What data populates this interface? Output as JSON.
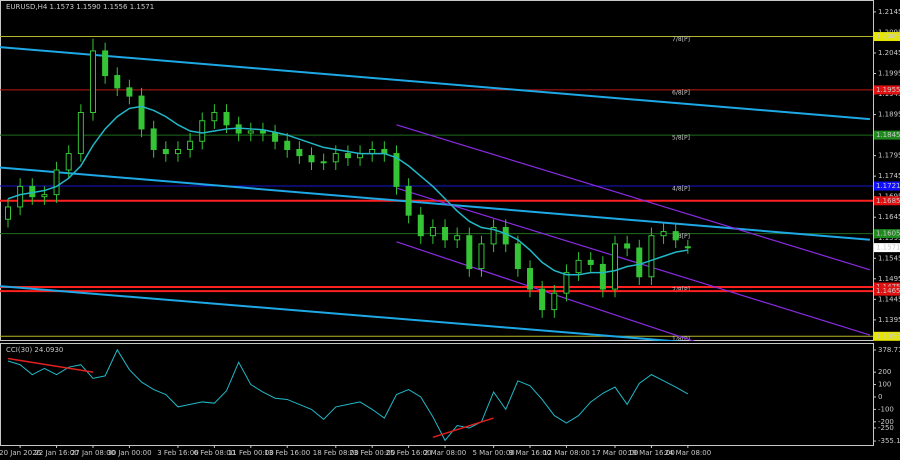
{
  "chart_data": {
    "type": "candlestick",
    "title": "EURUSD,H4  1.1573 1.1590 1.1556 1.1571",
    "color": "#35c435",
    "background": "#000000",
    "categories": [
      null,
      "20 Jan 2026",
      null,
      null,
      "22 Jan 16:00",
      null,
      null,
      "27 Jan 08:00",
      null,
      null,
      "30 Jan 00:00",
      null,
      null,
      null,
      "3 Feb 16:00",
      null,
      null,
      "6 Feb 08:00",
      null,
      null,
      "11 Feb 00:00",
      null,
      null,
      "13 Feb 16:00",
      null,
      null,
      null,
      "18 Feb 08:00",
      null,
      null,
      "23 Feb 00:00",
      null,
      null,
      "25 Feb 16:00",
      null,
      null,
      "2 Mar 08:00",
      null,
      null,
      null,
      "5 Mar 00:00",
      null,
      null,
      "9 Mar 16:00",
      null,
      null,
      "12 Mar 08:00",
      null,
      null,
      null,
      "17 Mar 00:00",
      null,
      null,
      "19 Mar 16:00",
      null,
      null,
      "24 Mar 08:00"
    ],
    "open": [
      1.164,
      1.167,
      1.172,
      1.1695,
      1.17,
      1.176,
      1.18,
      1.19,
      1.205,
      1.199,
      1.196,
      1.194,
      1.186,
      1.181,
      1.18,
      1.181,
      1.183,
      1.188,
      1.19,
      1.187,
      1.185,
      1.1855,
      1.185,
      1.183,
      1.181,
      1.1795,
      1.178,
      1.178,
      1.18,
      1.179,
      1.18,
      1.181,
      1.18,
      1.172,
      1.165,
      1.16,
      1.162,
      1.159,
      1.16,
      1.152,
      1.158,
      1.162,
      1.158,
      1.152,
      1.147,
      1.142,
      1.146,
      1.151,
      1.154,
      1.153,
      1.147,
      1.158,
      1.157,
      1.15,
      1.16,
      1.161,
      1.1573
    ],
    "high": [
      1.169,
      1.174,
      1.174,
      1.172,
      1.178,
      1.182,
      1.192,
      1.208,
      1.207,
      1.201,
      1.198,
      1.196,
      1.188,
      1.183,
      1.183,
      1.185,
      1.19,
      1.192,
      1.192,
      1.189,
      1.1875,
      1.1875,
      1.187,
      1.185,
      1.183,
      1.1815,
      1.18,
      1.182,
      1.182,
      1.182,
      1.183,
      1.183,
      1.182,
      1.174,
      1.167,
      1.164,
      1.164,
      1.162,
      1.162,
      1.16,
      1.164,
      1.164,
      1.16,
      1.154,
      1.149,
      1.148,
      1.153,
      1.156,
      1.156,
      1.155,
      1.16,
      1.16,
      1.159,
      1.162,
      1.163,
      1.163,
      1.159
    ],
    "low": [
      1.162,
      1.165,
      1.1675,
      1.1675,
      1.168,
      1.174,
      1.178,
      1.188,
      1.197,
      1.194,
      1.192,
      1.184,
      1.179,
      1.178,
      1.178,
      1.179,
      1.181,
      1.186,
      1.185,
      1.183,
      1.183,
      1.183,
      1.181,
      1.179,
      1.1775,
      1.176,
      1.176,
      1.176,
      1.177,
      1.177,
      1.178,
      1.178,
      1.17,
      1.163,
      1.158,
      1.158,
      1.157,
      1.157,
      1.15,
      1.15,
      1.156,
      1.156,
      1.15,
      1.145,
      1.14,
      1.14,
      1.144,
      1.149,
      1.151,
      1.145,
      1.145,
      1.155,
      1.148,
      1.148,
      1.158,
      1.157,
      1.1556
    ],
    "close": [
      1.167,
      1.172,
      1.1695,
      1.17,
      1.176,
      1.18,
      1.19,
      1.205,
      1.199,
      1.196,
      1.194,
      1.186,
      1.181,
      1.18,
      1.181,
      1.183,
      1.188,
      1.19,
      1.187,
      1.185,
      1.1855,
      1.185,
      1.183,
      1.181,
      1.1795,
      1.178,
      1.178,
      1.18,
      1.179,
      1.18,
      1.181,
      1.18,
      1.172,
      1.165,
      1.16,
      1.162,
      1.159,
      1.16,
      1.152,
      1.158,
      1.162,
      1.158,
      1.152,
      1.147,
      1.142,
      1.146,
      1.151,
      1.154,
      1.153,
      1.147,
      1.158,
      1.157,
      1.15,
      1.16,
      1.161,
      1.159,
      1.1571
    ],
    "ma": {
      "color": "#22b8c8",
      "values": [
        1.169,
        1.17,
        1.1705,
        1.171,
        1.172,
        1.174,
        1.177,
        1.182,
        1.186,
        1.189,
        1.191,
        1.1915,
        1.1905,
        1.189,
        1.187,
        1.1855,
        1.185,
        1.1855,
        1.186,
        1.1862,
        1.186,
        1.1858,
        1.1852,
        1.1845,
        1.1835,
        1.1825,
        1.1815,
        1.181,
        1.1805,
        1.18,
        1.18,
        1.18,
        1.179,
        1.177,
        1.1745,
        1.172,
        1.169,
        1.166,
        1.1635,
        1.162,
        1.1615,
        1.1605,
        1.159,
        1.1565,
        1.1535,
        1.1515,
        1.1505,
        1.1505,
        1.151,
        1.151,
        1.1515,
        1.1525,
        1.153,
        1.154,
        1.155,
        1.156,
        1.1565
      ]
    },
    "ylim": [
      1.1346,
      1.2174
    ],
    "yticks": [
      1.1395,
      1.1445,
      1.1495,
      1.1545,
      1.1595,
      1.1645,
      1.1695,
      1.1745,
      1.1795,
      1.1845,
      1.1895,
      1.1945,
      1.1995,
      1.2045,
      1.2095,
      1.2145
    ],
    "last_price": 1.1571,
    "levels": [
      {
        "value": 1.2085,
        "color": "#b5b52a",
        "box": "#e6e600",
        "name": "7/8[P]"
      },
      {
        "value": 1.1955,
        "color": "#c01818",
        "box": "#e01010",
        "name": "6/8[P]"
      },
      {
        "value": 1.1845,
        "color": "#1e6e1e",
        "box": "#1e8a1e",
        "name": "5/8[P]"
      },
      {
        "value": 1.1721,
        "color": "#1818d0",
        "box": "#1010ff",
        "name": "4/8[P]"
      },
      {
        "value": 1.1685,
        "color": "#ff2020",
        "box": "#e01010"
      },
      {
        "value": 1.1605,
        "color": "#1e6e1e",
        "box": "#1e8a1e",
        "name": "3/8[P]"
      },
      {
        "value": 1.1475,
        "color": "#ff2020",
        "box": "#e01010",
        "name": "2/8[P]"
      },
      {
        "value": 1.1465,
        "color": "#ff2020",
        "box": "#e01010"
      },
      {
        "value": 1.1355,
        "color": "#b5b52a",
        "box": "#e6e600",
        "name": "1/8[P]"
      }
    ],
    "trendlines": [
      {
        "color": "#1ea8e6",
        "x": [
          -1,
          71
        ],
        "values": [
          1.206,
          1.1884
        ]
      },
      {
        "color": "#1ea8e6",
        "x": [
          -1,
          71
        ],
        "values": [
          1.1767,
          1.159
        ]
      },
      {
        "color": "#1ea8e6",
        "x": [
          -1,
          71
        ],
        "values": [
          1.1478,
          1.1304
        ]
      },
      {
        "color": "#8a2be2",
        "x": [
          32,
          71
        ],
        "values": [
          1.187,
          1.1517
        ]
      },
      {
        "color": "#8a2be2",
        "x": [
          32,
          71
        ],
        "values": [
          1.1716,
          1.1358
        ]
      },
      {
        "color": "#8a2be2",
        "x": [
          32,
          71
        ],
        "values": [
          1.1585,
          1.12
        ]
      }
    ],
    "cci": {
      "title": "CCI(30) 24.0930",
      "color": "#22b8c8",
      "values": [
        290,
        260,
        180,
        230,
        180,
        240,
        260,
        150,
        170,
        380,
        220,
        120,
        60,
        20,
        -80,
        -60,
        -40,
        -50,
        50,
        280,
        100,
        40,
        -10,
        -20,
        -60,
        -100,
        -180,
        -80,
        -60,
        -40,
        -100,
        -170,
        20,
        60,
        0,
        -160,
        -350,
        -230,
        -250,
        -200,
        40,
        -100,
        130,
        90,
        -20,
        -150,
        -210,
        -150,
        -40,
        30,
        80,
        -60,
        110,
        180,
        130,
        80,
        24.093
      ],
      "ylim": [
        -387,
        435
      ],
      "yticks": [
        378.7116,
        200,
        100,
        0,
        -100,
        -200,
        -250,
        -355.1899
      ],
      "divergences": [
        {
          "color": "#e02020",
          "x": [
            0,
            7
          ],
          "values": [
            310,
            200
          ]
        },
        {
          "color": "#e02020",
          "x": [
            35,
            40
          ],
          "values": [
            -325,
            -170
          ]
        }
      ]
    }
  }
}
